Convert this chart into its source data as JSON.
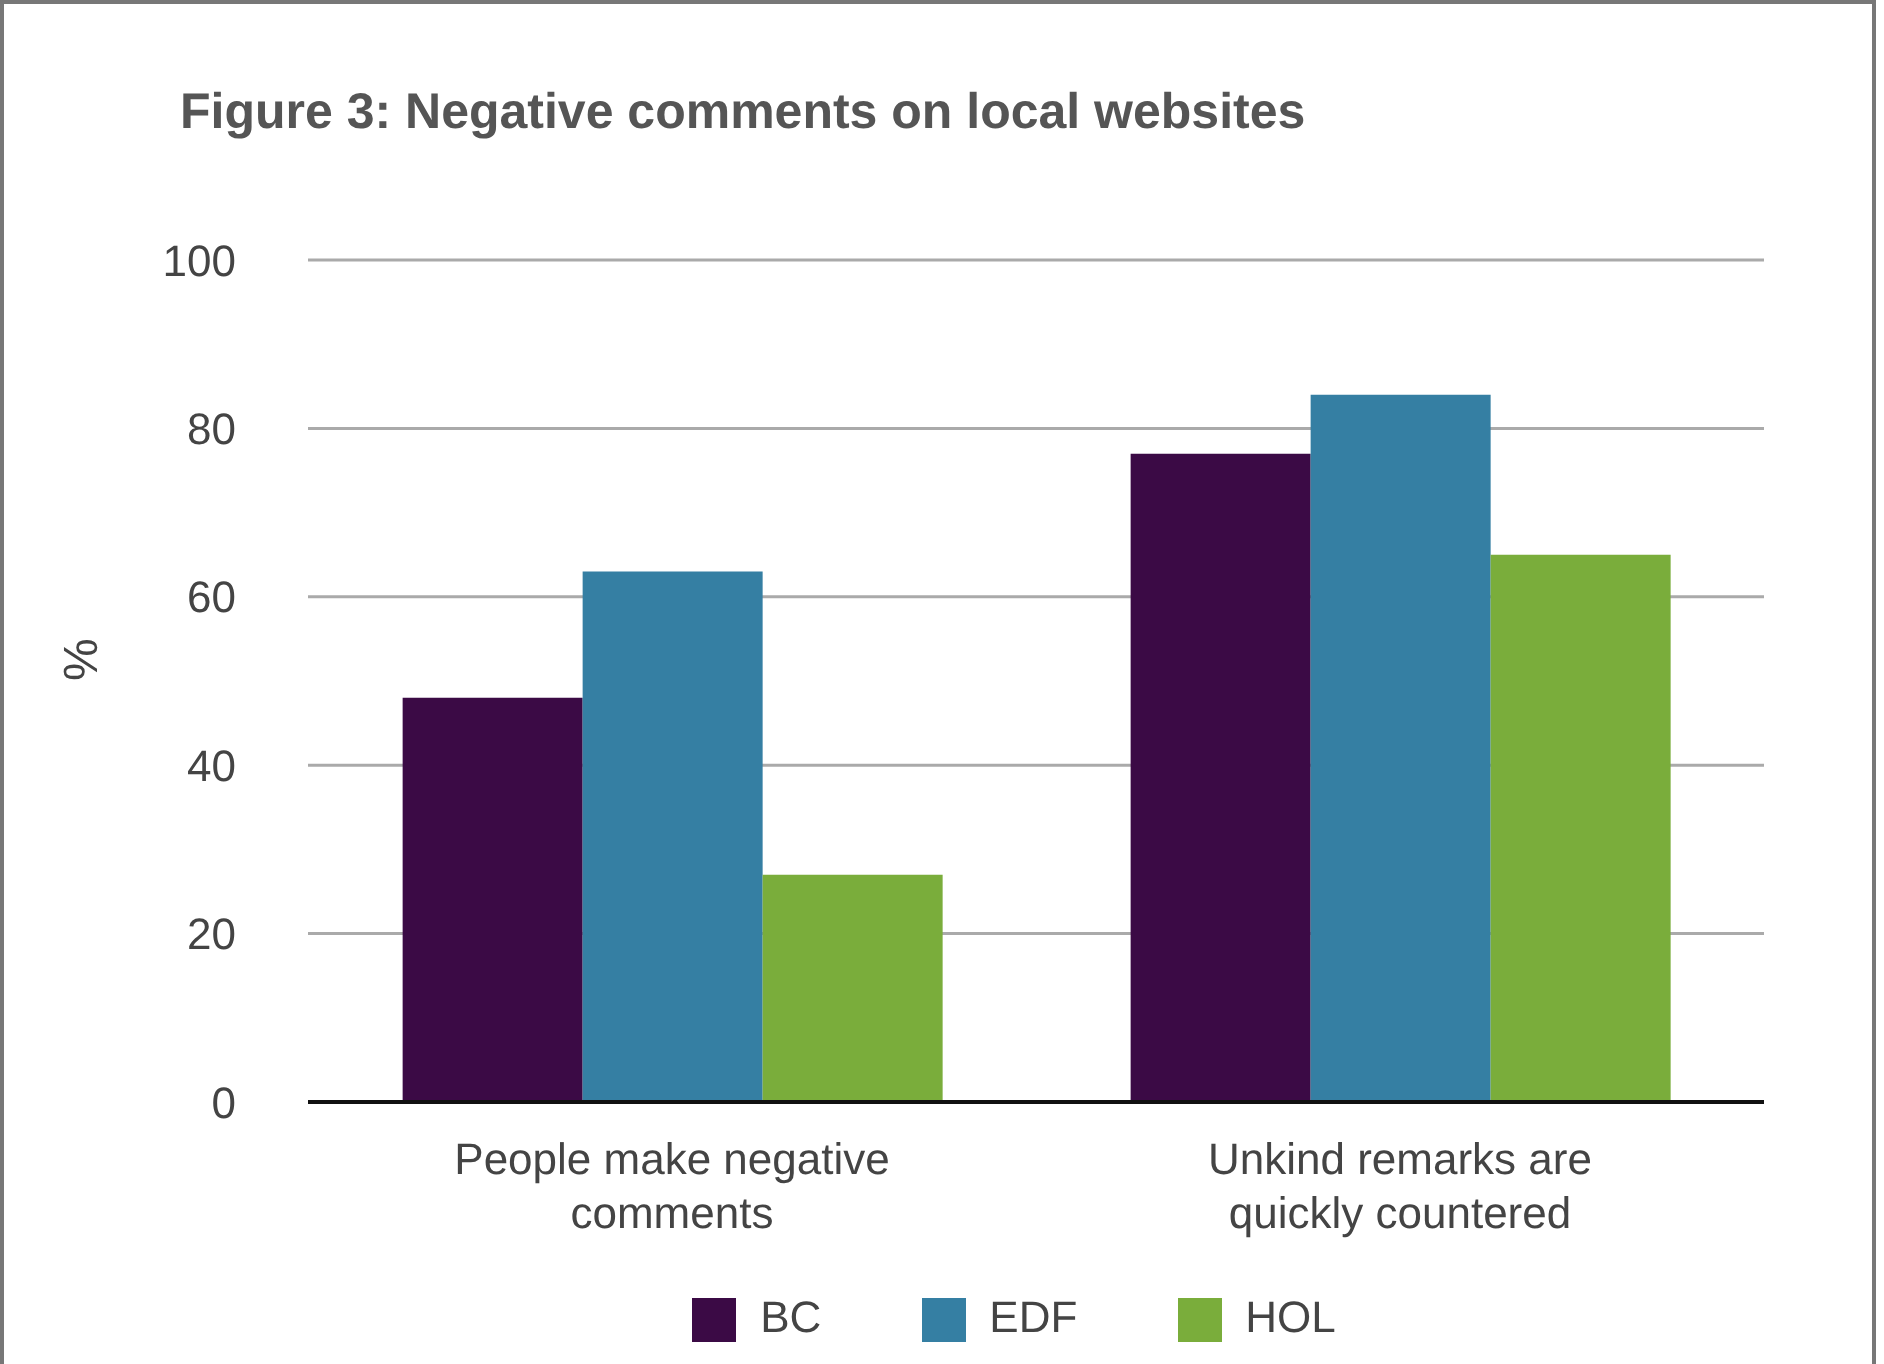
{
  "chart_data": {
    "type": "bar",
    "title": "Figure 3: Negative comments on local websites",
    "ylabel": "%",
    "categories": [
      "People make negative comments",
      "Unkind remarks are quickly countered"
    ],
    "series": [
      {
        "name": "BC",
        "color": "#3b0a45",
        "values": [
          48,
          77
        ]
      },
      {
        "name": "EDF",
        "color": "#357fa3",
        "values": [
          63,
          84
        ]
      },
      {
        "name": "HOL",
        "color": "#7aad3b",
        "values": [
          27,
          65
        ]
      }
    ],
    "ylim": [
      0,
      100
    ],
    "yticks": [
      0,
      20,
      40,
      60,
      80,
      100
    ],
    "grid": "y",
    "legend": "bottom"
  }
}
